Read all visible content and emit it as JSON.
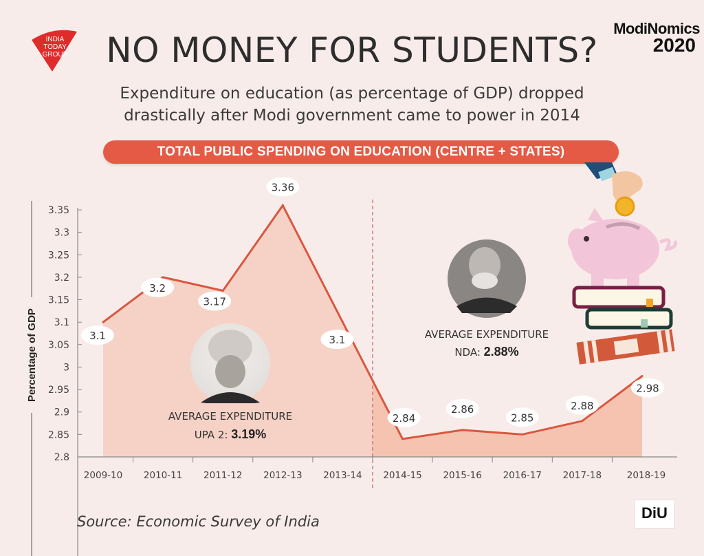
{
  "header": {
    "publisher_logo": [
      "INDIA",
      "TODAY",
      "GROUP"
    ],
    "title": "NO MONEY FOR STUDENTS?",
    "brand_line1": "ModiNomics",
    "brand_line2": "2020",
    "subtitle_line1": "Expenditure on education (as percentage of GDP) dropped",
    "subtitle_line2": "drastically after Modi government came to power in 2014",
    "banner": "TOTAL PUBLIC SPENDING ON EDUCATION (CENTRE + STATES)"
  },
  "colors": {
    "background": "#f8ecea",
    "accent": "#e55a45",
    "line": "#d9573f",
    "area_upa": "#f6d2c6",
    "area_nda": "#f6c3b1"
  },
  "annotations": {
    "upa_label": "AVERAGE EXPENDITURE",
    "upa_prefix": "UPA 2: ",
    "upa_value": "3.19%",
    "nda_label": "AVERAGE EXPENDITURE",
    "nda_prefix": "NDA: ",
    "nda_value": "2.88%",
    "upa_portrait_icon": "person-portrait-icon",
    "nda_portrait_icon": "person-portrait-icon",
    "illustration": "piggy-bank-books-icon"
  },
  "footer": {
    "source": "Source: Economic Survey of India",
    "badge": "DiU"
  },
  "chart_data": {
    "type": "area",
    "title": "TOTAL PUBLIC SPENDING ON EDUCATION (CENTRE + STATES)",
    "xlabel": "",
    "ylabel": "Percentage of GDP",
    "categories": [
      "2009-10",
      "2010-11",
      "2011-12",
      "2012-13",
      "2013-14",
      "2014-15",
      "2015-16",
      "2016-17",
      "2017-18",
      "2018-19"
    ],
    "series": [
      {
        "name": "Public spending on education (% of GDP)",
        "values": [
          3.1,
          3.2,
          3.17,
          3.36,
          3.1,
          2.84,
          2.86,
          2.85,
          2.88,
          2.98
        ]
      }
    ],
    "data_labels": [
      "3.1",
      "3.2",
      "3.17",
      "3.36",
      "3.1",
      "2.84",
      "2.86",
      "2.85",
      "2.88",
      "2.98"
    ],
    "ylim": [
      2.8,
      3.35
    ],
    "yticks": [
      "2.8",
      "2.85",
      "2.9",
      "2.95",
      "3",
      "3.05",
      "3.1",
      "3.15",
      "3.2",
      "3.25",
      "3.3",
      "3.35"
    ],
    "divider_after": "2013-14",
    "grid": false,
    "legend": "none"
  }
}
